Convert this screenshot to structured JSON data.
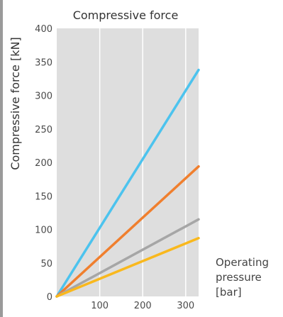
{
  "chart_data": {
    "type": "line",
    "title": "Compressive force",
    "ylabel": "Compressive force [kN]",
    "xlabel_lines": [
      "Operating",
      "pressure",
      "[bar]"
    ],
    "xlim": [
      0,
      330
    ],
    "ylim": [
      0,
      400
    ],
    "x_ticks": [
      100,
      200,
      300
    ],
    "y_ticks": [
      0,
      50,
      100,
      150,
      200,
      250,
      300,
      350,
      400
    ],
    "grid": {
      "vertical": true,
      "horizontal": false
    },
    "background": "#dedede",
    "grid_color": "#ffffff",
    "series": [
      {
        "color": "#4cc3ee",
        "points": [
          [
            0,
            0
          ],
          [
            330,
            338
          ]
        ]
      },
      {
        "color": "#f07f2e",
        "points": [
          [
            0,
            0
          ],
          [
            330,
            194
          ]
        ]
      },
      {
        "color": "#a6a6a6",
        "points": [
          [
            0,
            0
          ],
          [
            330,
            115
          ]
        ]
      },
      {
        "color": "#f9b81d",
        "points": [
          [
            0,
            0
          ],
          [
            330,
            87
          ]
        ]
      }
    ]
  }
}
